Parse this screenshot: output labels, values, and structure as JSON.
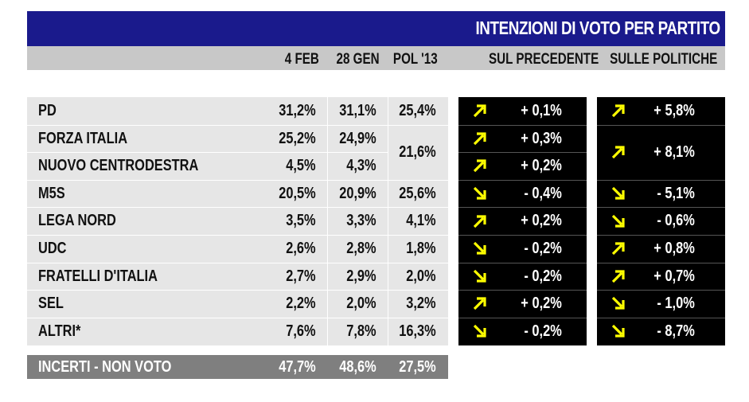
{
  "title": "INTENZIONI DI VOTO PER PARTITO",
  "columns": {
    "c1": "4 FEB",
    "c2": "28 GEN",
    "c3": "POL '13",
    "d1": "SUL PRECEDENTE",
    "d2": "SULLE POLITICHE"
  },
  "colors": {
    "title_bg": "#1a1a8c",
    "header_bg": "#c8c8c8",
    "row_bg": "#e6e6e6",
    "total_bg": "#7f7f7f",
    "delta_bg": "#000000",
    "arrow": "#ffff00"
  },
  "chart_data": {
    "type": "table",
    "rows": [
      {
        "party": "PD",
        "feb4": "31,2%",
        "jan28": "31,1%",
        "pol13": "25,4%",
        "d_prev": "+ 0,1%",
        "d_prev_dir": "up",
        "d_pol": "+ 5,8%",
        "d_pol_dir": "up"
      },
      {
        "party": "FORZA ITALIA",
        "feb4": "25,2%",
        "jan28": "24,9%",
        "pol13": "21,6%",
        "d_prev": "+ 0,3%",
        "d_prev_dir": "up",
        "d_pol": "+ 8,1%",
        "d_pol_dir": "up"
      },
      {
        "party": "NUOVO CENTRODESTRA",
        "feb4": "4,5%",
        "jan28": "4,3%",
        "pol13": "",
        "d_prev": "+ 0,2%",
        "d_prev_dir": "up",
        "d_pol": "",
        "d_pol_dir": ""
      },
      {
        "party": "M5S",
        "feb4": "20,5%",
        "jan28": "20,9%",
        "pol13": "25,6%",
        "d_prev": "- 0,4%",
        "d_prev_dir": "down",
        "d_pol": "- 5,1%",
        "d_pol_dir": "down"
      },
      {
        "party": "LEGA NORD",
        "feb4": "3,5%",
        "jan28": "3,3%",
        "pol13": "4,1%",
        "d_prev": "+ 0,2%",
        "d_prev_dir": "up",
        "d_pol": "- 0,6%",
        "d_pol_dir": "down"
      },
      {
        "party": "UDC",
        "feb4": "2,6%",
        "jan28": "2,8%",
        "pol13": "1,8%",
        "d_prev": "- 0,2%",
        "d_prev_dir": "down",
        "d_pol": "+ 0,8%",
        "d_pol_dir": "up"
      },
      {
        "party": "FRATELLI D'ITALIA",
        "feb4": "2,7%",
        "jan28": "2,9%",
        "pol13": "2,0%",
        "d_prev": "- 0,2%",
        "d_prev_dir": "down",
        "d_pol": "+ 0,7%",
        "d_pol_dir": "up"
      },
      {
        "party": "SEL",
        "feb4": "2,2%",
        "jan28": "2,0%",
        "pol13": "3,2%",
        "d_prev": "+ 0,2%",
        "d_prev_dir": "up",
        "d_pol": "- 1,0%",
        "d_pol_dir": "down"
      },
      {
        "party": "ALTRI*",
        "feb4": "7,6%",
        "jan28": "7,8%",
        "pol13": "16,3%",
        "d_prev": "- 0,2%",
        "d_prev_dir": "down",
        "d_pol": "- 8,7%",
        "d_pol_dir": "down"
      }
    ],
    "total": {
      "party": "INCERTI - NON VOTO",
      "feb4": "47,7%",
      "jan28": "48,6%",
      "pol13": "27,5%"
    }
  }
}
